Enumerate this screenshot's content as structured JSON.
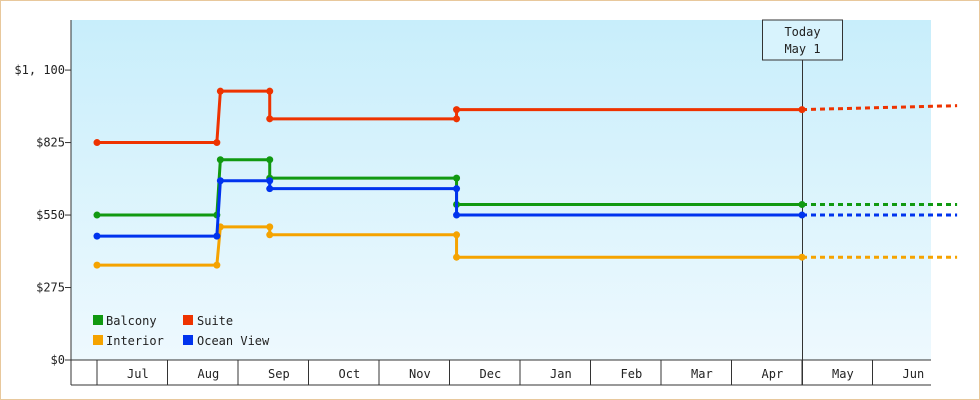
{
  "chart_data": {
    "type": "line",
    "step": true,
    "x_unit": "month",
    "x_tick_labels": [
      "Jul",
      "Aug",
      "Sep",
      "Oct",
      "Nov",
      "Dec",
      "Jan",
      "Feb",
      "Mar",
      "Apr",
      "May",
      "Jun"
    ],
    "y_tick_labels": [
      "$0",
      "$275",
      "$550",
      "$825",
      "$1, 100"
    ],
    "y_ticks": [
      0,
      275,
      550,
      825,
      1100
    ],
    "ylim": [
      0,
      1290
    ],
    "xlim": [
      0,
      12.2
    ],
    "grid": false,
    "legend_position": "bottom-left",
    "today_marker": {
      "x": 10.0,
      "line1": "Today",
      "line2": "May 1"
    },
    "series": [
      {
        "name": "Balcony",
        "color": "#119911",
        "points": [
          [
            0.0,
            550
          ],
          [
            1.7,
            550
          ],
          [
            1.75,
            760
          ],
          [
            2.45,
            760
          ],
          [
            2.45,
            690
          ],
          [
            5.1,
            690
          ],
          [
            5.1,
            590
          ],
          [
            10.0,
            590
          ]
        ],
        "projection": [
          [
            10.0,
            590
          ],
          [
            12.2,
            590
          ]
        ]
      },
      {
        "name": "Suite",
        "color": "#ee3300",
        "points": [
          [
            0.0,
            825
          ],
          [
            1.7,
            825
          ],
          [
            1.75,
            1020
          ],
          [
            2.45,
            1020
          ],
          [
            2.45,
            915
          ],
          [
            5.1,
            915
          ],
          [
            5.1,
            950
          ],
          [
            10.0,
            950
          ]
        ],
        "projection": [
          [
            10.0,
            950
          ],
          [
            12.2,
            965
          ]
        ]
      },
      {
        "name": "Interior",
        "color": "#f5a300",
        "points": [
          [
            0.0,
            360
          ],
          [
            1.7,
            360
          ],
          [
            1.75,
            505
          ],
          [
            2.45,
            505
          ],
          [
            2.45,
            475
          ],
          [
            5.1,
            475
          ],
          [
            5.1,
            390
          ],
          [
            10.0,
            390
          ]
        ],
        "projection": [
          [
            10.0,
            390
          ],
          [
            12.2,
            390
          ]
        ]
      },
      {
        "name": "Ocean View",
        "color": "#0033ee",
        "points": [
          [
            0.0,
            470
          ],
          [
            1.7,
            470
          ],
          [
            1.75,
            680
          ],
          [
            2.45,
            680
          ],
          [
            2.45,
            650
          ],
          [
            5.1,
            650
          ],
          [
            5.1,
            550
          ],
          [
            10.0,
            550
          ]
        ],
        "projection": [
          [
            10.0,
            550
          ],
          [
            12.2,
            550
          ]
        ]
      }
    ]
  },
  "legend": {
    "items": [
      {
        "label": "Balcony",
        "color": "#119911"
      },
      {
        "label": "Suite",
        "color": "#ee3300"
      },
      {
        "label": "Interior",
        "color": "#f5a300"
      },
      {
        "label": "Ocean View",
        "color": "#0033ee"
      }
    ]
  }
}
